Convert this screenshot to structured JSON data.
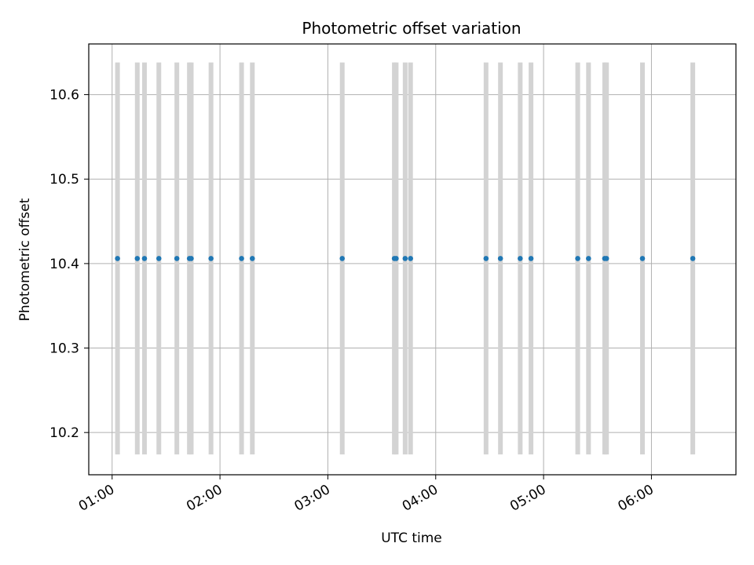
{
  "chart_data": {
    "type": "scatter",
    "title": "Photometric offset variation",
    "xlabel": "UTC time",
    "ylabel": "Photometric offset",
    "x_ticks": [
      "01:00",
      "02:00",
      "03:00",
      "04:00",
      "05:00",
      "06:00"
    ],
    "y_ticks": [
      "10.2",
      "10.3",
      "10.4",
      "10.5",
      "10.6"
    ],
    "xlim": [
      "00:47",
      "06:47"
    ],
    "ylim": [
      10.15,
      10.66
    ],
    "grid": true,
    "x": [
      "01:03",
      "01:14",
      "01:18",
      "01:26",
      "01:36",
      "01:43",
      "01:44",
      "01:55",
      "02:12",
      "02:18",
      "03:08",
      "03:37",
      "03:38",
      "03:43",
      "03:46",
      "04:28",
      "04:36",
      "04:47",
      "04:53",
      "05:19",
      "05:25",
      "05:34",
      "05:35",
      "05:55",
      "06:23"
    ],
    "values": [
      10.406,
      10.406,
      10.406,
      10.406,
      10.406,
      10.406,
      10.406,
      10.406,
      10.406,
      10.406,
      10.406,
      10.406,
      10.406,
      10.406,
      10.406,
      10.406,
      10.406,
      10.406,
      10.406,
      10.406,
      10.406,
      10.406,
      10.406,
      10.406,
      10.406
    ],
    "error_low": 10.174,
    "error_high": 10.638,
    "colors": {
      "points": "#1f77b4",
      "error_bars": "#d3d3d3",
      "grid": "#b0b0b0",
      "axes": "#000000"
    }
  }
}
